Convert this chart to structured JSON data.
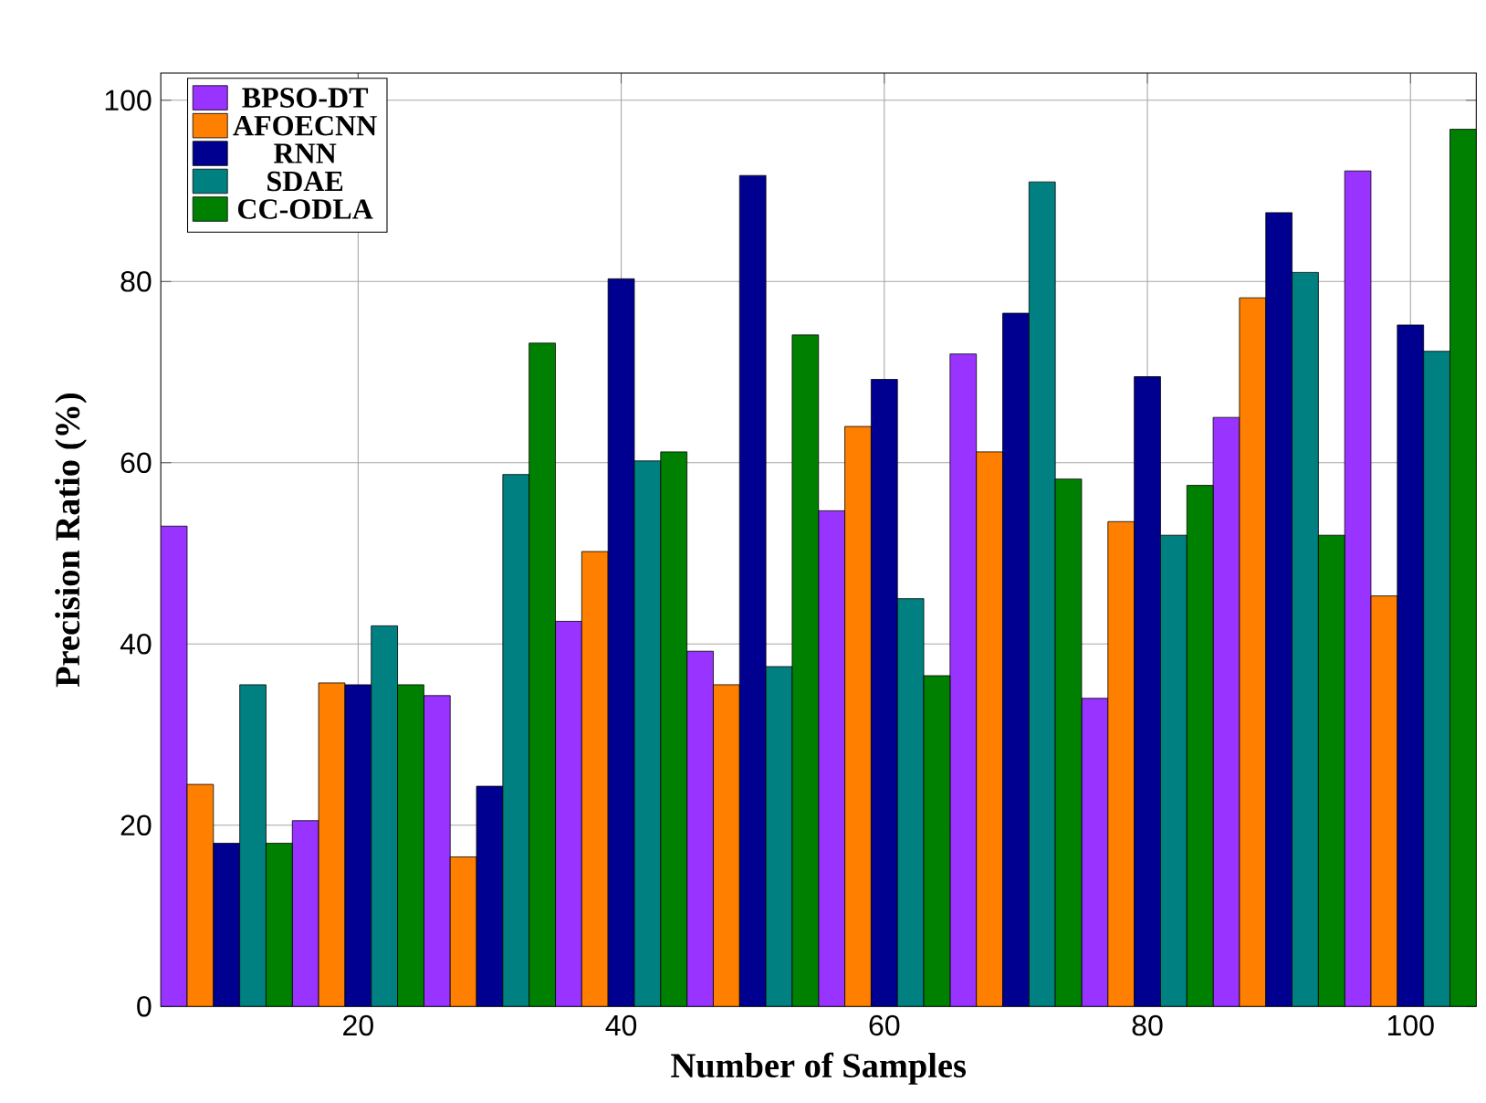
{
  "chart_data": {
    "type": "bar",
    "xlabel": "Number of Samples",
    "ylabel": "Precision Ratio (%)",
    "x": [
      10,
      20,
      30,
      40,
      50,
      60,
      70,
      80,
      90,
      100
    ],
    "series": [
      {
        "name": "BPSO-DT",
        "color": "#9933ff",
        "values": [
          53,
          20.5,
          34.3,
          42.5,
          39.2,
          54.7,
          72,
          34,
          65,
          92.2
        ]
      },
      {
        "name": "AFOECNN",
        "color": "#ff8000",
        "values": [
          24.5,
          35.7,
          16.5,
          50.2,
          35.5,
          64,
          61.2,
          53.5,
          78.2,
          45.3
        ]
      },
      {
        "name": "RNN",
        "color": "#000090",
        "values": [
          18,
          35.5,
          24.3,
          80.3,
          91.7,
          69.2,
          76.5,
          69.5,
          87.6,
          75.2
        ]
      },
      {
        "name": "SDAE",
        "color": "#008080",
        "values": [
          35.5,
          42,
          58.7,
          60.2,
          37.5,
          45,
          91,
          52,
          81,
          72.3
        ]
      },
      {
        "name": "CC-ODLA",
        "color": "#008000",
        "values": [
          18,
          35.5,
          73.2,
          61.2,
          74.1,
          36.5,
          58.2,
          57.5,
          52,
          96.8
        ]
      }
    ],
    "xlim": [
      5,
      105
    ],
    "ylim": [
      0,
      103
    ],
    "xticks": [
      20,
      40,
      60,
      80,
      100
    ],
    "yticks": [
      0,
      20,
      40,
      60,
      80,
      100
    ],
    "grid": true,
    "legend": "top left"
  }
}
